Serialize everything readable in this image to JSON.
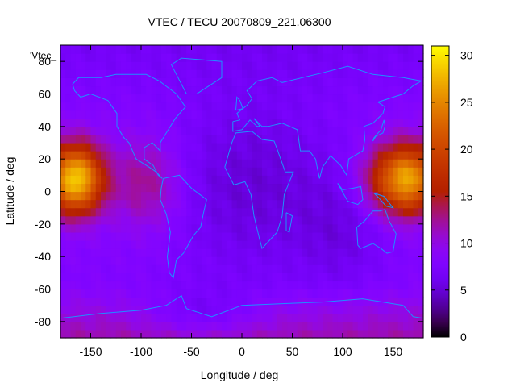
{
  "chart_data": {
    "type": "heatmap",
    "title": "VTEC / TECU 20070809_221.06300",
    "xlabel": "Longitude / deg",
    "ylabel": "Latitude / deg",
    "legend_key": "'Vtec_",
    "xlim": [
      -180,
      180
    ],
    "ylim": [
      -90,
      90
    ],
    "xticks": [
      -150,
      -100,
      -50,
      0,
      50,
      100,
      150
    ],
    "yticks": [
      -80,
      -60,
      -40,
      -20,
      0,
      20,
      40,
      60,
      80
    ],
    "colorbar": {
      "range": [
        0,
        31
      ],
      "ticks": [
        0,
        5,
        10,
        15,
        20,
        25,
        30
      ]
    },
    "grid": false,
    "resolution_deg": {
      "lon": 5,
      "lat": 5
    },
    "components": {
      "background": 8,
      "polar_north": 1.5,
      "polar_south": -4,
      "bulges": [
        {
          "lon": -165,
          "lat": 8,
          "amp": 21,
          "sigma_lon": 19,
          "sigma_lat": 15
        },
        {
          "lon": 163,
          "lat": 8,
          "amp": 19,
          "sigma_lon": 25,
          "sigma_lat": 15
        },
        {
          "lon": -95,
          "lat": 5,
          "amp": 5,
          "sigma_lon": 25,
          "sigma_lat": 20
        }
      ],
      "dips": [
        {
          "lon": 10,
          "lat": 5,
          "amp": -3,
          "sigma_lon": 60,
          "sigma_lat": 40
        },
        {
          "lon": -40,
          "lat": -75,
          "amp": -3,
          "sigma_lon": 40,
          "sigma_lat": 10
        },
        {
          "lon": 100,
          "lat": -25,
          "amp": -2,
          "sigma_lon": 30,
          "sigma_lat": 25
        }
      ]
    },
    "coastline_color": "#1e90ff",
    "palette": "black-purple-red-yellow"
  }
}
